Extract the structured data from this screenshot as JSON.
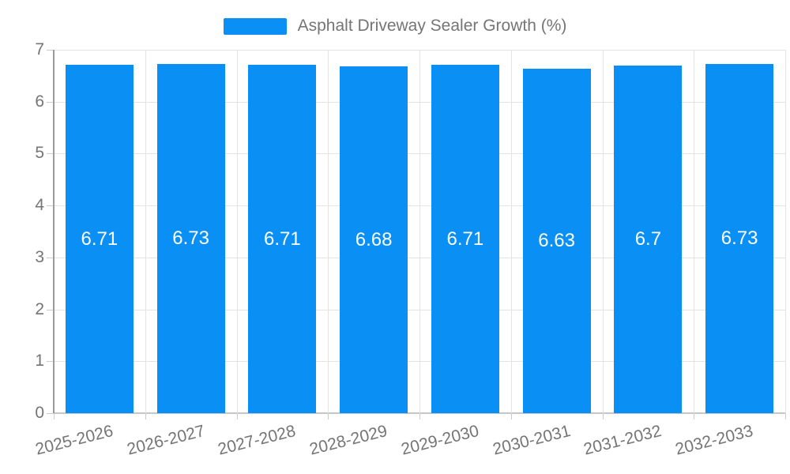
{
  "legend": {
    "swatch_color": "#0a8ff5"
  },
  "colors": {
    "bar": "#0a8ff5",
    "grid": "#e3e3e3",
    "axis_line": "#9a9a9a",
    "zero_line": "#c6c6c6",
    "tick": "#cccccc",
    "axis_text": "#757575",
    "value_text": "#ffffff",
    "background": "#ffffff"
  },
  "chart_data": {
    "type": "bar",
    "title": "",
    "series_name": "Asphalt Driveway Sealer Growth (%)",
    "categories": [
      "2025-2026",
      "2026-2027",
      "2027-2028",
      "2028-2029",
      "2029-2030",
      "2030-2031",
      "2031-2032",
      "2032-2033"
    ],
    "values": [
      6.71,
      6.73,
      6.71,
      6.68,
      6.71,
      6.63,
      6.7,
      6.73
    ],
    "value_labels": [
      "6.71",
      "6.73",
      "6.71",
      "6.68",
      "6.71",
      "6.63",
      "6.7",
      "6.73"
    ],
    "xlabel": "",
    "ylabel": "",
    "ylim": [
      0,
      7
    ],
    "yticks": [
      0,
      1,
      2,
      3,
      4,
      5,
      6,
      7
    ],
    "grid": true,
    "legend_position": "top-center",
    "value_label_position": "inside-center",
    "x_label_rotation_deg": -14
  }
}
